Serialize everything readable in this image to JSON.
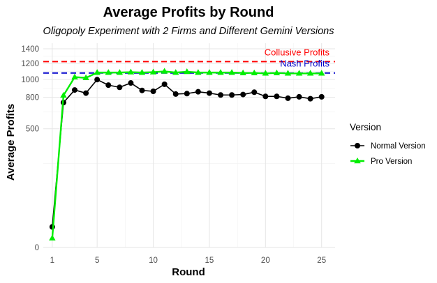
{
  "chart_data": {
    "type": "line",
    "title": "Average Profits by Round",
    "subtitle": "Oligopoly Experiment with 2 Firms and Different Gemini Versions",
    "xlabel": "Round",
    "ylabel": "Average Profits",
    "x_ticks": [
      1,
      5,
      10,
      15,
      20,
      25
    ],
    "y_ticks": [
      0,
      500,
      800,
      1000,
      1200,
      1400
    ],
    "y_scale": "sqrt",
    "xlim": [
      0.2,
      26.2
    ],
    "ylim": [
      0,
      1480
    ],
    "grid": true,
    "legend": {
      "title": "Version",
      "placement": "right"
    },
    "x": [
      1,
      2,
      3,
      4,
      5,
      6,
      7,
      8,
      9,
      10,
      11,
      12,
      13,
      14,
      15,
      16,
      17,
      18,
      19,
      20,
      21,
      22,
      23,
      24,
      25
    ],
    "series": [
      {
        "name": "Normal Version",
        "color": "#000000",
        "marker": "circle",
        "values": [
          15,
          745,
          880,
          845,
          1000,
          935,
          910,
          960,
          875,
          865,
          945,
          835,
          840,
          860,
          845,
          825,
          825,
          830,
          855,
          810,
          810,
          790,
          805,
          785,
          805
        ]
      },
      {
        "name": "Pro Version",
        "color": "#00ee00",
        "marker": "triangle",
        "values": [
          3,
          820,
          1030,
          1020,
          1085,
          1085,
          1085,
          1090,
          1085,
          1090,
          1100,
          1085,
          1095,
          1085,
          1085,
          1085,
          1085,
          1080,
          1080,
          1075,
          1080,
          1075,
          1075,
          1075,
          1075
        ]
      }
    ],
    "reference_lines": [
      {
        "label": "Collusive Profits",
        "value": 1225,
        "color": "#ff0000",
        "style": "dashed"
      },
      {
        "label": "Nash Profits",
        "value": 1080,
        "color": "#0000cc",
        "style": "dashed"
      }
    ]
  }
}
